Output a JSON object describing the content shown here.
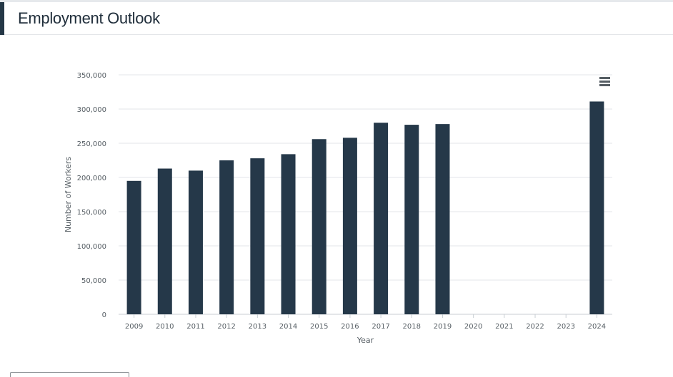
{
  "header": {
    "title": "Employment Outlook"
  },
  "chart_data": {
    "type": "bar",
    "xlabel": "Year",
    "ylabel": "Number of Workers",
    "ylim": [
      0,
      350000
    ],
    "yticks": [
      0,
      50000,
      100000,
      150000,
      200000,
      250000,
      300000,
      350000
    ],
    "ytick_labels": [
      "0",
      "50,000",
      "100,000",
      "150,000",
      "200,000",
      "250,000",
      "300,000",
      "350,000"
    ],
    "categories": [
      "2009",
      "2010",
      "2011",
      "2012",
      "2013",
      "2014",
      "2015",
      "2016",
      "2017",
      "2018",
      "2019",
      "2020",
      "2021",
      "2022",
      "2023",
      "2024"
    ],
    "values": [
      195000,
      213000,
      210000,
      225000,
      228000,
      234000,
      256000,
      258000,
      280000,
      277000,
      278000,
      null,
      null,
      null,
      null,
      311000
    ],
    "color": "#253849",
    "grid": true,
    "legend": "none"
  },
  "controls": {
    "menu_icon": "hamburger-menu-icon"
  }
}
